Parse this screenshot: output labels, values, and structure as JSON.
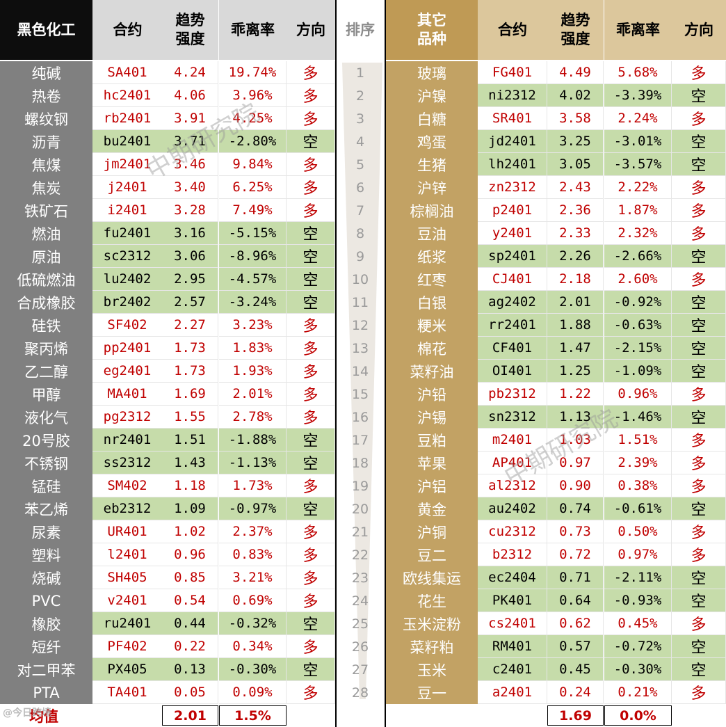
{
  "header": {
    "left_title": "黑色化工",
    "contract": "合约",
    "trend_strength": "趋势\n强度",
    "deviation": "乖离率",
    "direction": "方向",
    "rank": "排序",
    "right_title": "其它\n品种"
  },
  "left_rows": [
    {
      "name": "纯碱",
      "contract": "SA401",
      "strength": "4.24",
      "deviation": "19.74%",
      "direction": "多",
      "short": false
    },
    {
      "name": "热卷",
      "contract": "hc2401",
      "strength": "4.06",
      "deviation": "3.96%",
      "direction": "多",
      "short": false
    },
    {
      "name": "螺纹钢",
      "contract": "rb2401",
      "strength": "3.91",
      "deviation": "4.25%",
      "direction": "多",
      "short": false
    },
    {
      "name": "沥青",
      "contract": "bu2401",
      "strength": "3.71",
      "deviation": "-2.80%",
      "direction": "空",
      "short": true
    },
    {
      "name": "焦煤",
      "contract": "jm2401",
      "strength": "3.46",
      "deviation": "9.84%",
      "direction": "多",
      "short": false
    },
    {
      "name": "焦炭",
      "contract": "j2401",
      "strength": "3.40",
      "deviation": "6.25%",
      "direction": "多",
      "short": false
    },
    {
      "name": "铁矿石",
      "contract": "i2401",
      "strength": "3.28",
      "deviation": "7.49%",
      "direction": "多",
      "short": false
    },
    {
      "name": "燃油",
      "contract": "fu2401",
      "strength": "3.16",
      "deviation": "-5.15%",
      "direction": "空",
      "short": true
    },
    {
      "name": "原油",
      "contract": "sc2312",
      "strength": "3.06",
      "deviation": "-8.96%",
      "direction": "空",
      "short": true
    },
    {
      "name": "低硫燃油",
      "contract": "lu2402",
      "strength": "2.95",
      "deviation": "-4.57%",
      "direction": "空",
      "short": true
    },
    {
      "name": "合成橡胶",
      "contract": "br2402",
      "strength": "2.57",
      "deviation": "-3.24%",
      "direction": "空",
      "short": true
    },
    {
      "name": "硅铁",
      "contract": "SF402",
      "strength": "2.27",
      "deviation": "3.23%",
      "direction": "多",
      "short": false
    },
    {
      "name": "聚丙烯",
      "contract": "pp2401",
      "strength": "1.73",
      "deviation": "1.83%",
      "direction": "多",
      "short": false
    },
    {
      "name": "乙二醇",
      "contract": "eg2401",
      "strength": "1.73",
      "deviation": "1.93%",
      "direction": "多",
      "short": false
    },
    {
      "name": "甲醇",
      "contract": "MA401",
      "strength": "1.69",
      "deviation": "2.01%",
      "direction": "多",
      "short": false
    },
    {
      "name": "液化气",
      "contract": "pg2312",
      "strength": "1.55",
      "deviation": "2.78%",
      "direction": "多",
      "short": false
    },
    {
      "name": "20号胶",
      "contract": "nr2401",
      "strength": "1.51",
      "deviation": "-1.88%",
      "direction": "空",
      "short": true
    },
    {
      "name": "不锈钢",
      "contract": "ss2312",
      "strength": "1.43",
      "deviation": "-1.13%",
      "direction": "空",
      "short": true
    },
    {
      "name": "锰硅",
      "contract": "SM402",
      "strength": "1.18",
      "deviation": "1.73%",
      "direction": "多",
      "short": false
    },
    {
      "name": "苯乙烯",
      "contract": "eb2312",
      "strength": "1.09",
      "deviation": "-0.97%",
      "direction": "空",
      "short": true
    },
    {
      "name": "尿素",
      "contract": "UR401",
      "strength": "1.02",
      "deviation": "2.37%",
      "direction": "多",
      "short": false
    },
    {
      "name": "塑料",
      "contract": "l2401",
      "strength": "0.96",
      "deviation": "0.83%",
      "direction": "多",
      "short": false
    },
    {
      "name": "烧碱",
      "contract": "SH405",
      "strength": "0.85",
      "deviation": "3.21%",
      "direction": "多",
      "short": false
    },
    {
      "name": "PVC",
      "contract": "v2401",
      "strength": "0.54",
      "deviation": "0.69%",
      "direction": "多",
      "short": false
    },
    {
      "name": "橡胶",
      "contract": "ru2401",
      "strength": "0.44",
      "deviation": "-0.32%",
      "direction": "空",
      "short": true
    },
    {
      "name": "短纤",
      "contract": "PF402",
      "strength": "0.22",
      "deviation": "0.34%",
      "direction": "多",
      "short": false
    },
    {
      "name": "对二甲苯",
      "contract": "PX405",
      "strength": "0.13",
      "deviation": "-0.30%",
      "direction": "空",
      "short": true
    },
    {
      "name": "PTA",
      "contract": "TA401",
      "strength": "0.05",
      "deviation": "0.09%",
      "direction": "多",
      "short": false
    }
  ],
  "ranks": [
    "1",
    "2",
    "3",
    "4",
    "5",
    "6",
    "7",
    "8",
    "9",
    "10",
    "11",
    "12",
    "13",
    "14",
    "15",
    "16",
    "17",
    "18",
    "19",
    "20",
    "21",
    "22",
    "23",
    "24",
    "25",
    "26",
    "27",
    "28"
  ],
  "right_rows": [
    {
      "name": "玻璃",
      "contract": "FG401",
      "strength": "4.49",
      "deviation": "5.68%",
      "direction": "多",
      "short": false
    },
    {
      "name": "沪镍",
      "contract": "ni2312",
      "strength": "4.02",
      "deviation": "-3.39%",
      "direction": "空",
      "short": true
    },
    {
      "name": "白糖",
      "contract": "SR401",
      "strength": "3.58",
      "deviation": "2.24%",
      "direction": "多",
      "short": false
    },
    {
      "name": "鸡蛋",
      "contract": "jd2401",
      "strength": "3.25",
      "deviation": "-3.01%",
      "direction": "空",
      "short": true
    },
    {
      "name": "生猪",
      "contract": "lh2401",
      "strength": "3.05",
      "deviation": "-3.57%",
      "direction": "空",
      "short": true
    },
    {
      "name": "沪锌",
      "contract": "zn2312",
      "strength": "2.43",
      "deviation": "2.22%",
      "direction": "多",
      "short": false
    },
    {
      "name": "棕榈油",
      "contract": "p2401",
      "strength": "2.36",
      "deviation": "1.87%",
      "direction": "多",
      "short": false
    },
    {
      "name": "豆油",
      "contract": "y2401",
      "strength": "2.33",
      "deviation": "2.32%",
      "direction": "多",
      "short": false
    },
    {
      "name": "纸浆",
      "contract": "sp2401",
      "strength": "2.26",
      "deviation": "-2.66%",
      "direction": "空",
      "short": true
    },
    {
      "name": "红枣",
      "contract": "CJ401",
      "strength": "2.18",
      "deviation": "2.60%",
      "direction": "多",
      "short": false
    },
    {
      "name": "白银",
      "contract": "ag2402",
      "strength": "2.01",
      "deviation": "-0.92%",
      "direction": "空",
      "short": true
    },
    {
      "name": "粳米",
      "contract": "rr2401",
      "strength": "1.88",
      "deviation": "-0.63%",
      "direction": "空",
      "short": true
    },
    {
      "name": "棉花",
      "contract": "CF401",
      "strength": "1.47",
      "deviation": "-2.15%",
      "direction": "空",
      "short": true
    },
    {
      "name": "菜籽油",
      "contract": "OI401",
      "strength": "1.25",
      "deviation": "-1.09%",
      "direction": "空",
      "short": true
    },
    {
      "name": "沪铅",
      "contract": "pb2312",
      "strength": "1.22",
      "deviation": "0.96%",
      "direction": "多",
      "short": false
    },
    {
      "name": "沪锡",
      "contract": "sn2312",
      "strength": "1.13",
      "deviation": "-1.46%",
      "direction": "空",
      "short": true
    },
    {
      "name": "豆粕",
      "contract": "m2401",
      "strength": "1.03",
      "deviation": "1.51%",
      "direction": "多",
      "short": false
    },
    {
      "name": "苹果",
      "contract": "AP401",
      "strength": "0.97",
      "deviation": "2.39%",
      "direction": "多",
      "short": false
    },
    {
      "name": "沪铝",
      "contract": "al2312",
      "strength": "0.90",
      "deviation": "0.38%",
      "direction": "多",
      "short": false
    },
    {
      "name": "黄金",
      "contract": "au2402",
      "strength": "0.74",
      "deviation": "-0.61%",
      "direction": "空",
      "short": true
    },
    {
      "name": "沪铜",
      "contract": "cu2312",
      "strength": "0.73",
      "deviation": "0.50%",
      "direction": "多",
      "short": false
    },
    {
      "name": "豆二",
      "contract": "b2312",
      "strength": "0.72",
      "deviation": "0.97%",
      "direction": "多",
      "short": false
    },
    {
      "name": "欧线集运",
      "contract": "ec2404",
      "strength": "0.71",
      "deviation": "-2.11%",
      "direction": "空",
      "short": true
    },
    {
      "name": "花生",
      "contract": "PK401",
      "strength": "0.64",
      "deviation": "-0.93%",
      "direction": "空",
      "short": true
    },
    {
      "name": "玉米淀粉",
      "contract": "cs2401",
      "strength": "0.62",
      "deviation": "0.45%",
      "direction": "多",
      "short": false
    },
    {
      "name": "菜籽粕",
      "contract": "RM401",
      "strength": "0.57",
      "deviation": "-0.72%",
      "direction": "空",
      "short": true
    },
    {
      "name": "玉米",
      "contract": "c2401",
      "strength": "0.45",
      "deviation": "-0.30%",
      "direction": "空",
      "short": true
    },
    {
      "name": "豆一",
      "contract": "a2401",
      "strength": "0.24",
      "deviation": "0.21%",
      "direction": "多",
      "short": false
    }
  ],
  "footer": {
    "avg_label": "均值",
    "left_avg_strength": "2.01",
    "left_avg_deviation": "1.5%",
    "right_avg_strength": "1.69",
    "right_avg_deviation": "0.0%"
  },
  "watermark": "中期研究院",
  "brand_mark": "@今日跨境",
  "colors": {
    "header_dark": "#0d0d0d",
    "header_grey": "#d9d9d9",
    "header_gold": "#bf9a55",
    "header_tan": "#dcc79c",
    "category_left": "#808080",
    "category_right": "#c2a264",
    "short_fill": "#c6dcaa",
    "long_text": "#c00000"
  }
}
